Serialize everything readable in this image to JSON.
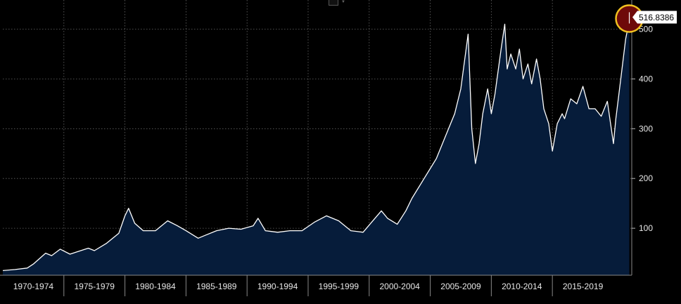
{
  "chart_data": {
    "type": "area",
    "title": "",
    "xlabel": "",
    "ylabel": "",
    "x_range": [
      1970.0,
      2021.5
    ],
    "ylim": [
      0,
      550
    ],
    "grid": true,
    "y_ticks": [
      100,
      200,
      300,
      400,
      500
    ],
    "x_tick_labels": [
      "1970-1974",
      "1975-1979",
      "1980-1984",
      "1985-1989",
      "1990-1994",
      "1995-1999",
      "2000-2004",
      "2005-2009",
      "2010-2014",
      "2015-2019"
    ],
    "last_value_label": "516.8386",
    "fill_color": "#061c3a",
    "line_color": "#ffffff",
    "highlight_color": "#6e0a0a",
    "highlight_ring_color": "#f0c020",
    "x": [
      1970.0,
      1971.0,
      1972.0,
      1972.5,
      1973.5,
      1974.0,
      1974.7,
      1975.5,
      1976.0,
      1977.0,
      1977.5,
      1978.5,
      1979.5,
      1980.0,
      1980.3,
      1980.8,
      1981.5,
      1982.5,
      1983.5,
      1984.3,
      1985.0,
      1986.0,
      1986.5,
      1987.5,
      1988.5,
      1989.5,
      1990.5,
      1990.9,
      1991.5,
      1992.5,
      1993.5,
      1994.5,
      1995.5,
      1996.5,
      1997.5,
      1998.5,
      1999.5,
      2000.2,
      2001.0,
      2001.5,
      2002.3,
      2003.0,
      2003.5,
      2004.5,
      2005.0,
      2005.5,
      2006.0,
      2006.5,
      2007.0,
      2007.5,
      2008.1,
      2008.4,
      2008.7,
      2009.0,
      2009.3,
      2009.7,
      2010.0,
      2010.3,
      2010.8,
      2011.1,
      2011.3,
      2011.6,
      2012.0,
      2012.3,
      2012.6,
      2013.0,
      2013.3,
      2013.7,
      2014.0,
      2014.3,
      2014.7,
      2015.0,
      2015.4,
      2015.8,
      2016.0,
      2016.5,
      2017.0,
      2017.5,
      2018.0,
      2018.5,
      2019.0,
      2019.5,
      2020.0,
      2020.2,
      2020.6,
      2021.0,
      2021.3
    ],
    "values": [
      15,
      17,
      20,
      28,
      50,
      45,
      58,
      48,
      52,
      60,
      55,
      70,
      90,
      125,
      140,
      110,
      95,
      95,
      115,
      105,
      95,
      80,
      85,
      95,
      100,
      98,
      105,
      120,
      95,
      92,
      95,
      95,
      112,
      125,
      115,
      95,
      92,
      112,
      135,
      120,
      108,
      135,
      160,
      200,
      220,
      240,
      270,
      300,
      330,
      380,
      490,
      300,
      230,
      270,
      330,
      380,
      330,
      370,
      460,
      510,
      420,
      450,
      420,
      460,
      400,
      430,
      390,
      440,
      400,
      340,
      310,
      255,
      310,
      330,
      320,
      360,
      350,
      385,
      340,
      340,
      325,
      355,
      270,
      320,
      400,
      480,
      517
    ]
  }
}
